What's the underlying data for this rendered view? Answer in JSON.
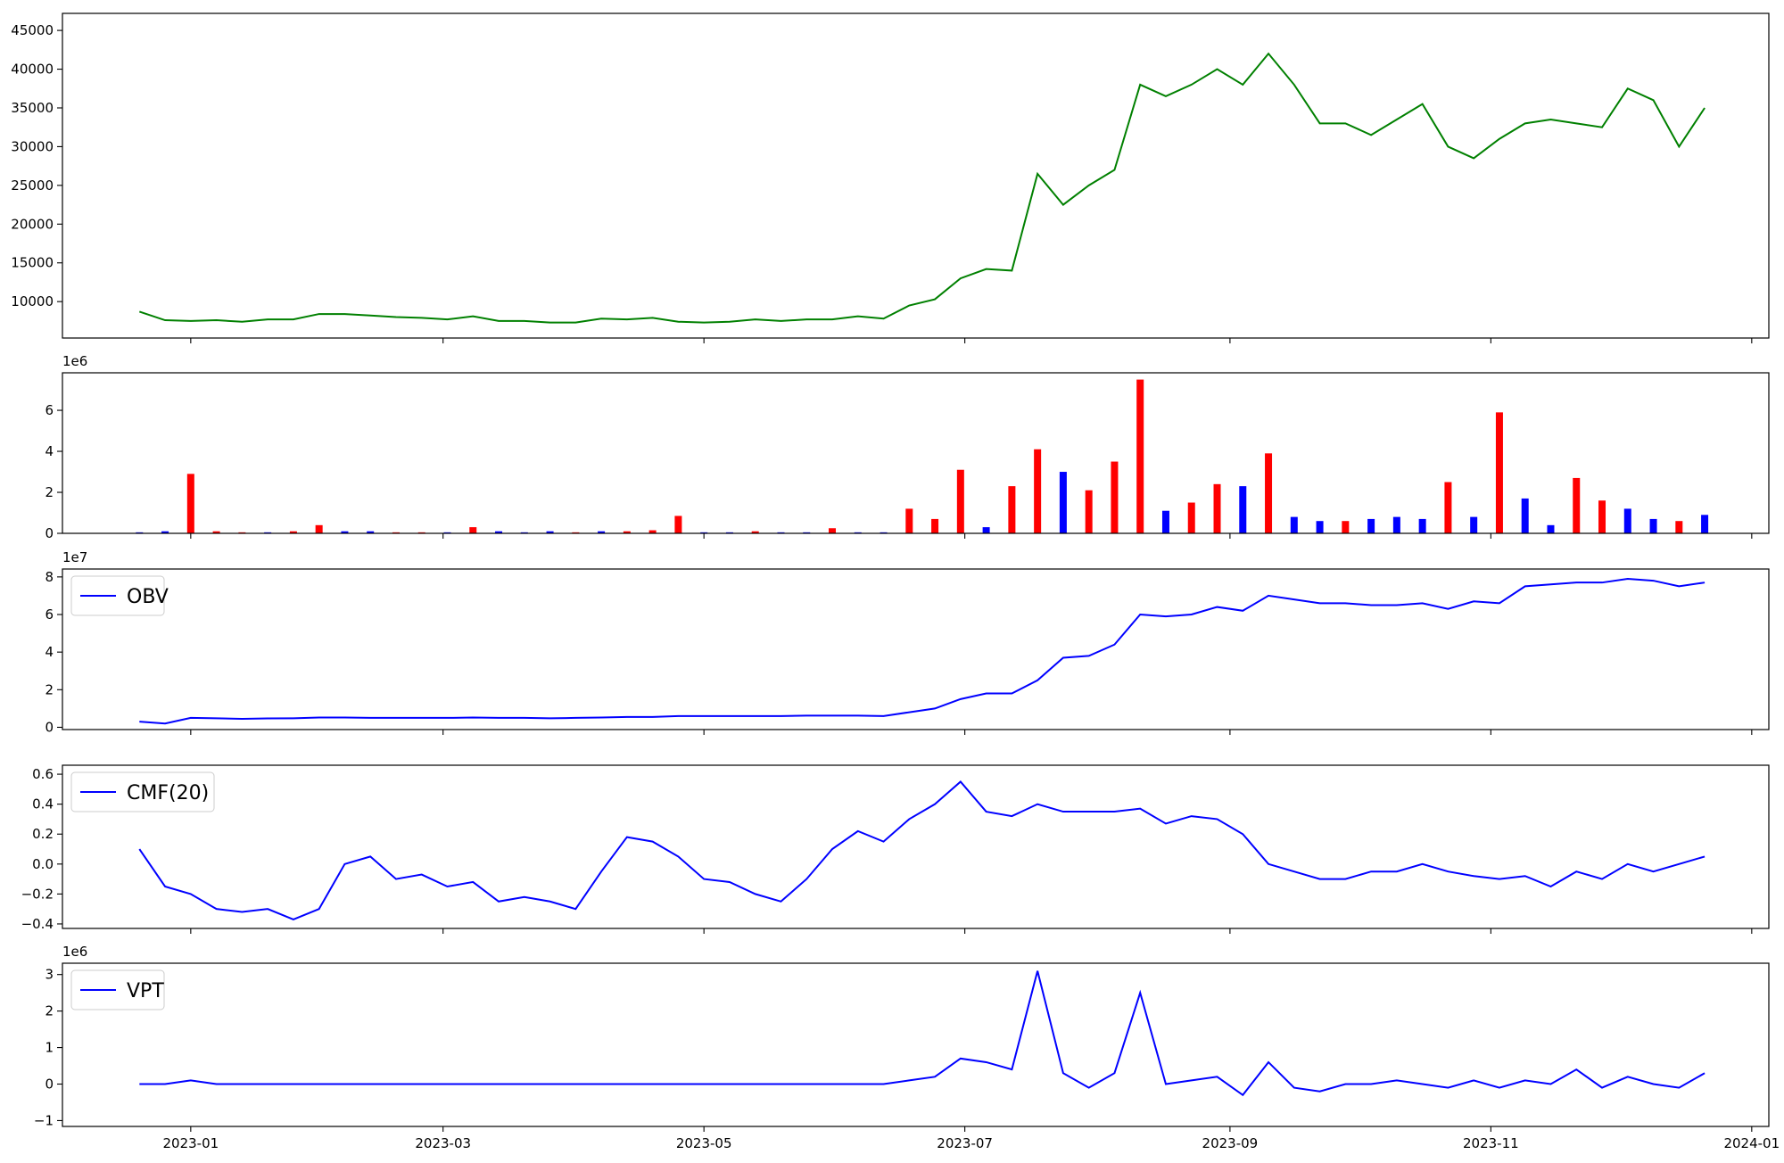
{
  "chart_data": [
    {
      "type": "line",
      "x": [
        "2022-12-20",
        "2022-12-26",
        "2023-01-01",
        "2023-01-07",
        "2023-01-13",
        "2023-01-19",
        "2023-01-25",
        "2023-01-31",
        "2023-02-06",
        "2023-02-12",
        "2023-02-18",
        "2023-02-24",
        "2023-03-02",
        "2023-03-08",
        "2023-03-14",
        "2023-03-20",
        "2023-03-26",
        "2023-04-01",
        "2023-04-07",
        "2023-04-13",
        "2023-04-19",
        "2023-04-25",
        "2023-05-01",
        "2023-05-07",
        "2023-05-13",
        "2023-05-19",
        "2023-05-25",
        "2023-05-31",
        "2023-06-06",
        "2023-06-12",
        "2023-06-18",
        "2023-06-24",
        "2023-06-30",
        "2023-07-06",
        "2023-07-12",
        "2023-07-18",
        "2023-07-24",
        "2023-07-30",
        "2023-08-05",
        "2023-08-11",
        "2023-08-17",
        "2023-08-23",
        "2023-08-29",
        "2023-09-04",
        "2023-09-10",
        "2023-09-16",
        "2023-09-22",
        "2023-09-28",
        "2023-10-04",
        "2023-10-10",
        "2023-10-16",
        "2023-10-22",
        "2023-10-28",
        "2023-11-03",
        "2023-11-09",
        "2023-11-15",
        "2023-11-21",
        "2023-11-27",
        "2023-12-03",
        "2023-12-09",
        "2023-12-15",
        "2023-12-21"
      ],
      "series": [
        {
          "color": "#008000",
          "values": [
            8700,
            7600,
            7500,
            7600,
            7400,
            7700,
            7700,
            8400,
            8400,
            8200,
            8000,
            7900,
            7700,
            8100,
            7500,
            7500,
            7300,
            7300,
            7800,
            7700,
            7900,
            7400,
            7300,
            7400,
            7700,
            7500,
            7700,
            7700,
            8100,
            7800,
            9500,
            10300,
            13000,
            14200,
            14000,
            26500,
            22500,
            25000,
            27000,
            38000,
            36500,
            38000,
            40000,
            38000,
            42000,
            38000,
            33000,
            33000,
            31500,
            33500,
            35500,
            30000,
            28500,
            31000,
            33000,
            33500,
            33000,
            32500,
            37500,
            36000,
            30000,
            35000
          ]
        }
      ],
      "xlim": [
        "2022-12-02",
        "2024-01-05"
      ],
      "ylim": [
        5300,
        47200
      ],
      "yticks": [
        10000,
        15000,
        20000,
        25000,
        30000,
        35000,
        40000,
        45000
      ]
    },
    {
      "type": "bar",
      "x": [
        "2022-12-20",
        "2022-12-26",
        "2023-01-01",
        "2023-01-07",
        "2023-01-13",
        "2023-01-19",
        "2023-01-25",
        "2023-01-31",
        "2023-02-06",
        "2023-02-12",
        "2023-02-18",
        "2023-02-24",
        "2023-03-02",
        "2023-03-08",
        "2023-03-14",
        "2023-03-20",
        "2023-03-26",
        "2023-04-01",
        "2023-04-07",
        "2023-04-13",
        "2023-04-19",
        "2023-04-25",
        "2023-05-01",
        "2023-05-07",
        "2023-05-13",
        "2023-05-19",
        "2023-05-25",
        "2023-05-31",
        "2023-06-06",
        "2023-06-12",
        "2023-06-18",
        "2023-06-24",
        "2023-06-30",
        "2023-07-06",
        "2023-07-12",
        "2023-07-18",
        "2023-07-24",
        "2023-07-30",
        "2023-08-05",
        "2023-08-11",
        "2023-08-17",
        "2023-08-23",
        "2023-08-29",
        "2023-09-04",
        "2023-09-10",
        "2023-09-16",
        "2023-09-22",
        "2023-09-28",
        "2023-10-04",
        "2023-10-10",
        "2023-10-16",
        "2023-10-22",
        "2023-10-28",
        "2023-11-03",
        "2023-11-09",
        "2023-11-15",
        "2023-11-21",
        "2023-11-27",
        "2023-12-03",
        "2023-12-09",
        "2023-12-15",
        "2023-12-21"
      ],
      "values": [
        0.05,
        0.1,
        2.9,
        0.1,
        0.05,
        0.05,
        0.1,
        0.4,
        0.1,
        0.1,
        0.05,
        0.05,
        0.05,
        0.3,
        0.1,
        0.05,
        0.1,
        0.05,
        0.1,
        0.1,
        0.15,
        0.85,
        0.05,
        0.05,
        0.1,
        0.05,
        0.05,
        0.25,
        0.05,
        0.05,
        1.2,
        0.7,
        3.1,
        0.3,
        2.3,
        4.1,
        3.0,
        2.1,
        3.5,
        7.5,
        1.1,
        1.5,
        2.4,
        2.3,
        3.9,
        0.8,
        0.6,
        0.6,
        0.7,
        0.8,
        0.7,
        2.5,
        0.8,
        5.9,
        1.7,
        0.4,
        2.7,
        1.6,
        1.2,
        0.7,
        0.6,
        0.9
      ],
      "colors": [
        "#0000ff",
        "#0000ff",
        "#ff0000",
        "#ff0000",
        "#ff0000",
        "#0000ff",
        "#ff0000",
        "#ff0000",
        "#0000ff",
        "#0000ff",
        "#ff0000",
        "#ff0000",
        "#0000ff",
        "#ff0000",
        "#0000ff",
        "#0000ff",
        "#0000ff",
        "#ff0000",
        "#0000ff",
        "#ff0000",
        "#ff0000",
        "#ff0000",
        "#0000ff",
        "#0000ff",
        "#ff0000",
        "#0000ff",
        "#0000ff",
        "#ff0000",
        "#0000ff",
        "#0000ff",
        "#ff0000",
        "#ff0000",
        "#ff0000",
        "#0000ff",
        "#ff0000",
        "#ff0000",
        "#0000ff",
        "#ff0000",
        "#ff0000",
        "#ff0000",
        "#0000ff",
        "#ff0000",
        "#ff0000",
        "#0000ff",
        "#ff0000",
        "#0000ff",
        "#0000ff",
        "#ff0000",
        "#0000ff",
        "#0000ff",
        "#0000ff",
        "#ff0000",
        "#0000ff",
        "#ff0000",
        "#0000ff",
        "#0000ff",
        "#ff0000",
        "#ff0000",
        "#0000ff",
        "#0000ff",
        "#ff0000",
        "#0000ff"
      ],
      "offset_text": "1e6",
      "xlim": [
        "2022-12-02",
        "2024-01-05"
      ],
      "ylim": [
        0,
        7.83
      ],
      "yticks": [
        0,
        2,
        4,
        6
      ]
    },
    {
      "type": "line",
      "x": [
        "2022-12-20",
        "2022-12-26",
        "2023-01-01",
        "2023-01-07",
        "2023-01-13",
        "2023-01-19",
        "2023-01-25",
        "2023-01-31",
        "2023-02-06",
        "2023-02-12",
        "2023-02-18",
        "2023-02-24",
        "2023-03-02",
        "2023-03-08",
        "2023-03-14",
        "2023-03-20",
        "2023-03-26",
        "2023-04-01",
        "2023-04-07",
        "2023-04-13",
        "2023-04-19",
        "2023-04-25",
        "2023-05-01",
        "2023-05-07",
        "2023-05-13",
        "2023-05-19",
        "2023-05-25",
        "2023-05-31",
        "2023-06-06",
        "2023-06-12",
        "2023-06-18",
        "2023-06-24",
        "2023-06-30",
        "2023-07-06",
        "2023-07-12",
        "2023-07-18",
        "2023-07-24",
        "2023-07-30",
        "2023-08-05",
        "2023-08-11",
        "2023-08-17",
        "2023-08-23",
        "2023-08-29",
        "2023-09-04",
        "2023-09-10",
        "2023-09-16",
        "2023-09-22",
        "2023-09-28",
        "2023-10-04",
        "2023-10-10",
        "2023-10-16",
        "2023-10-22",
        "2023-10-28",
        "2023-11-03",
        "2023-11-09",
        "2023-11-15",
        "2023-11-21",
        "2023-11-27",
        "2023-12-03",
        "2023-12-09",
        "2023-12-15",
        "2023-12-21"
      ],
      "series": [
        {
          "name": "OBV",
          "color": "#0000ff",
          "values": [
            0.3,
            0.2,
            0.5,
            0.48,
            0.45,
            0.47,
            0.48,
            0.52,
            0.52,
            0.5,
            0.5,
            0.5,
            0.5,
            0.52,
            0.5,
            0.5,
            0.48,
            0.5,
            0.52,
            0.55,
            0.55,
            0.6,
            0.6,
            0.6,
            0.6,
            0.6,
            0.62,
            0.62,
            0.62,
            0.6,
            0.8,
            1.0,
            1.5,
            1.8,
            1.8,
            2.5,
            3.7,
            3.8,
            4.4,
            6.0,
            5.9,
            6.0,
            6.4,
            6.2,
            7.0,
            6.8,
            6.6,
            6.6,
            6.5,
            6.5,
            6.6,
            6.3,
            6.7,
            6.6,
            7.5,
            7.6,
            7.7,
            7.7,
            7.9,
            7.8,
            7.5,
            7.7
          ]
        }
      ],
      "offset_text": "1e7",
      "legend": "upper left",
      "xlim": [
        "2022-12-02",
        "2024-01-05"
      ],
      "ylim": [
        -0.12,
        8.42
      ],
      "yticks": [
        0,
        2,
        4,
        6,
        8
      ]
    },
    {
      "type": "line",
      "x": [
        "2022-12-20",
        "2022-12-26",
        "2023-01-01",
        "2023-01-07",
        "2023-01-13",
        "2023-01-19",
        "2023-01-25",
        "2023-01-31",
        "2023-02-06",
        "2023-02-12",
        "2023-02-18",
        "2023-02-24",
        "2023-03-02",
        "2023-03-08",
        "2023-03-14",
        "2023-03-20",
        "2023-03-26",
        "2023-04-01",
        "2023-04-07",
        "2023-04-13",
        "2023-04-19",
        "2023-04-25",
        "2023-05-01",
        "2023-05-07",
        "2023-05-13",
        "2023-05-19",
        "2023-05-25",
        "2023-05-31",
        "2023-06-06",
        "2023-06-12",
        "2023-06-18",
        "2023-06-24",
        "2023-06-30",
        "2023-07-06",
        "2023-07-12",
        "2023-07-18",
        "2023-07-24",
        "2023-07-30",
        "2023-08-05",
        "2023-08-11",
        "2023-08-17",
        "2023-08-23",
        "2023-08-29",
        "2023-09-04",
        "2023-09-10",
        "2023-09-16",
        "2023-09-22",
        "2023-09-28",
        "2023-10-04",
        "2023-10-10",
        "2023-10-16",
        "2023-10-22",
        "2023-10-28",
        "2023-11-03",
        "2023-11-09",
        "2023-11-15",
        "2023-11-21",
        "2023-11-27",
        "2023-12-03",
        "2023-12-09",
        "2023-12-15",
        "2023-12-21"
      ],
      "series": [
        {
          "name": "CMF(20)",
          "color": "#0000ff",
          "values": [
            0.1,
            -0.15,
            -0.2,
            -0.3,
            -0.32,
            -0.3,
            -0.37,
            -0.3,
            0.0,
            0.05,
            -0.1,
            -0.07,
            -0.15,
            -0.12,
            -0.25,
            -0.22,
            -0.25,
            -0.3,
            -0.05,
            0.18,
            0.15,
            0.05,
            -0.1,
            -0.12,
            -0.2,
            -0.25,
            -0.1,
            0.1,
            0.22,
            0.15,
            0.3,
            0.4,
            0.55,
            0.35,
            0.32,
            0.4,
            0.35,
            0.35,
            0.35,
            0.37,
            0.27,
            0.32,
            0.3,
            0.2,
            0.0,
            -0.05,
            -0.1,
            -0.1,
            -0.05,
            -0.05,
            0.0,
            -0.05,
            -0.08,
            -0.1,
            -0.08,
            -0.15,
            -0.05,
            -0.1,
            0.0,
            -0.05,
            0.0,
            0.05
          ]
        }
      ],
      "legend": "upper left",
      "xlim": [
        "2022-12-02",
        "2024-01-05"
      ],
      "ylim": [
        -0.43,
        0.66
      ],
      "yticks": [
        {
          "value": -0.4,
          "label": "−0.4"
        },
        {
          "value": -0.2,
          "label": "−0.2"
        },
        {
          "value": 0,
          "label": "0.0"
        },
        0.2,
        0.4,
        0.6
      ]
    },
    {
      "type": "line",
      "x": [
        "2022-12-20",
        "2022-12-26",
        "2023-01-01",
        "2023-01-07",
        "2023-01-13",
        "2023-01-19",
        "2023-01-25",
        "2023-01-31",
        "2023-02-06",
        "2023-02-12",
        "2023-02-18",
        "2023-02-24",
        "2023-03-02",
        "2023-03-08",
        "2023-03-14",
        "2023-03-20",
        "2023-03-26",
        "2023-04-01",
        "2023-04-07",
        "2023-04-13",
        "2023-04-19",
        "2023-04-25",
        "2023-05-01",
        "2023-05-07",
        "2023-05-13",
        "2023-05-19",
        "2023-05-25",
        "2023-05-31",
        "2023-06-06",
        "2023-06-12",
        "2023-06-18",
        "2023-06-24",
        "2023-06-30",
        "2023-07-06",
        "2023-07-12",
        "2023-07-18",
        "2023-07-24",
        "2023-07-30",
        "2023-08-05",
        "2023-08-11",
        "2023-08-17",
        "2023-08-23",
        "2023-08-29",
        "2023-09-04",
        "2023-09-10",
        "2023-09-16",
        "2023-09-22",
        "2023-09-28",
        "2023-10-04",
        "2023-10-10",
        "2023-10-16",
        "2023-10-22",
        "2023-10-28",
        "2023-11-03",
        "2023-11-09",
        "2023-11-15",
        "2023-11-21",
        "2023-11-27",
        "2023-12-03",
        "2023-12-09",
        "2023-12-15",
        "2023-12-21"
      ],
      "series": [
        {
          "name": "VPT",
          "color": "#0000ff",
          "values": [
            0,
            0,
            0.1,
            0,
            0,
            0,
            0,
            0,
            0,
            0,
            0,
            0,
            0,
            0,
            0,
            0,
            0,
            0,
            0,
            0,
            0,
            0,
            0,
            0,
            0,
            0,
            0,
            0,
            0,
            0,
            0.1,
            0.2,
            0.7,
            0.6,
            0.4,
            3.1,
            0.3,
            -0.1,
            0.3,
            2.5,
            0.0,
            0.1,
            0.2,
            -0.3,
            0.6,
            -0.1,
            -0.2,
            0.0,
            0.0,
            0.1,
            0.0,
            -0.1,
            0.1,
            -0.1,
            0.1,
            0.0,
            0.4,
            -0.1,
            0.2,
            0.0,
            -0.1,
            0.3
          ]
        }
      ],
      "offset_text": "1e6",
      "legend": "upper left",
      "xlim": [
        "2022-12-02",
        "2024-01-05"
      ],
      "ylim": [
        -1.16,
        3.31
      ],
      "yticks": [
        {
          "value": -1,
          "label": "−1"
        },
        0,
        1,
        2,
        3
      ],
      "xticks": [
        {
          "value": "2023-01-01",
          "label": "2023-01"
        },
        {
          "value": "2023-03-01",
          "label": "2023-03"
        },
        {
          "value": "2023-05-01",
          "label": "2023-05"
        },
        {
          "value": "2023-07-01",
          "label": "2023-07"
        },
        {
          "value": "2023-09-01",
          "label": "2023-09"
        },
        {
          "value": "2023-11-01",
          "label": "2023-11"
        },
        {
          "value": "2024-01-01",
          "label": "2024-01"
        }
      ]
    }
  ]
}
